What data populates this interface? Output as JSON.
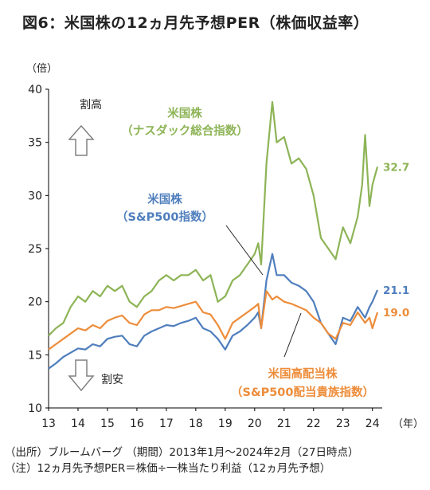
{
  "title": "図6：米国株の12ヵ月先予想PER（株価収益率）",
  "notes": {
    "source": "（出所）ブルームバーグ （期間）2013年1月～2024年2月（27日時点）",
    "note": "（注）12ヵ月先予想PER＝株価÷一株当たり利益（12ヵ月先予想）"
  },
  "arrows": {
    "up_label": "割高",
    "down_label": "割安"
  },
  "colors": {
    "nasdaq": "#8DB456",
    "sp500": "#4F7EBD",
    "dividend": "#ED8D3B",
    "axis": "#000000",
    "arrow": "#808080"
  },
  "chart_data": {
    "type": "line",
    "title": "",
    "xlabel": "（年）",
    "ylabel": "（倍）",
    "ylim": [
      10,
      40
    ],
    "xlim": [
      2013,
      2024.17
    ],
    "yticks": [
      "10",
      "15",
      "20",
      "25",
      "30",
      "35",
      "40"
    ],
    "xticks": [
      "13",
      "14",
      "15",
      "16",
      "17",
      "18",
      "19",
      "20",
      "21",
      "22",
      "23",
      "24"
    ],
    "grid": false,
    "legend": "inline labels",
    "series": [
      {
        "key": "nasdaq",
        "name": "米国株（ナスダック総合指数）",
        "label_lines": [
          "米国株",
          "（ナスダック総合指数）"
        ],
        "end_label": "32.7",
        "x": [
          2013.0,
          2013.25,
          2013.5,
          2013.75,
          2014.0,
          2014.25,
          2014.5,
          2014.75,
          2015.0,
          2015.25,
          2015.5,
          2015.75,
          2016.0,
          2016.25,
          2016.5,
          2016.75,
          2017.0,
          2017.25,
          2017.5,
          2017.75,
          2018.0,
          2018.25,
          2018.5,
          2018.75,
          2019.0,
          2019.25,
          2019.5,
          2019.75,
          2020.0,
          2020.12,
          2020.22,
          2020.4,
          2020.6,
          2020.75,
          2021.0,
          2021.25,
          2021.5,
          2021.75,
          2022.0,
          2022.25,
          2022.5,
          2022.75,
          2023.0,
          2023.25,
          2023.5,
          2023.65,
          2023.75,
          2023.9,
          2024.0,
          2024.17
        ],
        "values": [
          16.8,
          17.5,
          18.0,
          19.5,
          20.5,
          20.0,
          21.0,
          20.5,
          21.5,
          21.0,
          21.5,
          20.0,
          19.5,
          20.5,
          21.0,
          22.0,
          22.5,
          22.0,
          22.5,
          22.5,
          23.0,
          22.0,
          22.5,
          20.0,
          20.5,
          22.0,
          22.5,
          23.5,
          24.5,
          25.5,
          23.5,
          33.0,
          38.8,
          35.0,
          35.5,
          33.0,
          33.5,
          32.5,
          30.0,
          26.0,
          25.0,
          24.0,
          27.0,
          25.5,
          28.0,
          31.0,
          35.7,
          29.0,
          31.0,
          32.7
        ]
      },
      {
        "key": "sp500",
        "name": "米国株（S&P500指数）",
        "label_lines": [
          "米国株",
          "（S&P500指数）"
        ],
        "end_label": "21.1",
        "x": [
          2013.0,
          2013.25,
          2013.5,
          2013.75,
          2014.0,
          2014.25,
          2014.5,
          2014.75,
          2015.0,
          2015.25,
          2015.5,
          2015.75,
          2016.0,
          2016.25,
          2016.5,
          2016.75,
          2017.0,
          2017.25,
          2017.5,
          2017.75,
          2018.0,
          2018.25,
          2018.5,
          2018.75,
          2019.0,
          2019.25,
          2019.5,
          2019.75,
          2020.0,
          2020.12,
          2020.22,
          2020.4,
          2020.6,
          2020.75,
          2021.0,
          2021.25,
          2021.5,
          2021.75,
          2022.0,
          2022.25,
          2022.5,
          2022.75,
          2023.0,
          2023.25,
          2023.5,
          2023.75,
          2023.9,
          2024.0,
          2024.17
        ],
        "values": [
          13.7,
          14.2,
          14.8,
          15.2,
          15.6,
          15.5,
          16.0,
          15.8,
          16.5,
          16.7,
          16.8,
          16.0,
          15.8,
          16.8,
          17.2,
          17.5,
          17.8,
          17.7,
          18.0,
          18.2,
          18.5,
          17.5,
          17.2,
          16.5,
          15.5,
          16.8,
          17.2,
          17.8,
          18.5,
          19.0,
          17.5,
          22.0,
          24.5,
          22.5,
          22.5,
          21.8,
          21.5,
          21.0,
          20.0,
          18.0,
          17.0,
          16.0,
          18.5,
          18.2,
          19.5,
          18.5,
          19.5,
          20.0,
          21.1
        ]
      },
      {
        "key": "dividend",
        "name": "米国高配当株（S&P500配当貴族指数）",
        "label_lines": [
          "米国高配当株",
          "（S&P500配当貴族指数）"
        ],
        "end_label": "19.0",
        "x": [
          2013.0,
          2013.25,
          2013.5,
          2013.75,
          2014.0,
          2014.25,
          2014.5,
          2014.75,
          2015.0,
          2015.25,
          2015.5,
          2015.75,
          2016.0,
          2016.25,
          2016.5,
          2016.75,
          2017.0,
          2017.25,
          2017.5,
          2017.75,
          2018.0,
          2018.25,
          2018.5,
          2018.75,
          2019.0,
          2019.25,
          2019.5,
          2019.75,
          2020.0,
          2020.12,
          2020.22,
          2020.4,
          2020.6,
          2020.75,
          2021.0,
          2021.25,
          2021.5,
          2021.75,
          2022.0,
          2022.25,
          2022.5,
          2022.75,
          2023.0,
          2023.25,
          2023.5,
          2023.75,
          2023.9,
          2024.0,
          2024.17
        ],
        "values": [
          15.5,
          16.0,
          16.5,
          17.0,
          17.5,
          17.3,
          17.8,
          17.5,
          18.2,
          18.5,
          18.7,
          18.0,
          17.8,
          18.8,
          19.2,
          19.2,
          19.5,
          19.4,
          19.6,
          19.8,
          20.0,
          19.0,
          18.8,
          17.8,
          16.5,
          18.0,
          18.5,
          19.0,
          19.5,
          19.8,
          17.5,
          21.0,
          20.2,
          20.5,
          20.0,
          19.8,
          19.5,
          19.2,
          18.5,
          18.0,
          17.0,
          16.5,
          18.0,
          17.8,
          19.0,
          18.0,
          18.5,
          17.5,
          19.0
        ]
      }
    ]
  }
}
